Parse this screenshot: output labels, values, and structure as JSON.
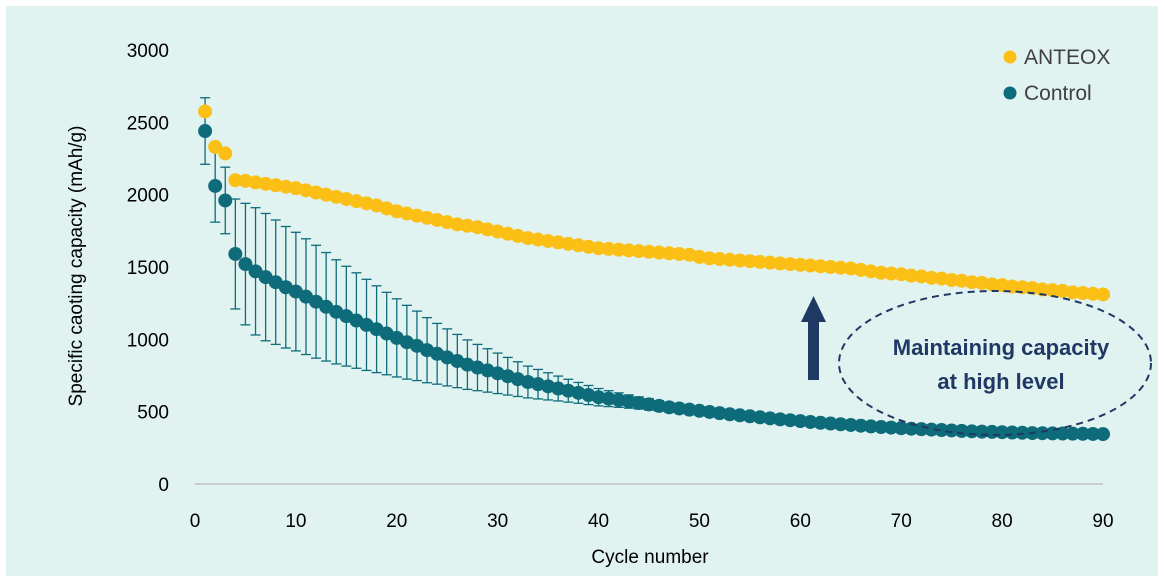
{
  "colors": {
    "background": "#e1f3f1",
    "anteox": "#fbbf16",
    "control": "#0e6b7a",
    "annotation": "#1f3864",
    "axis": "#bfbfbf",
    "text": "#000000"
  },
  "annotation": {
    "line1": "Maintaining capacity",
    "line2": "at high level"
  },
  "chart_data": {
    "type": "scatter",
    "xlabel": "Cycle number",
    "ylabel": "Specific caoting capacity (mAh/g)",
    "xlim": [
      0,
      90
    ],
    "ylim": [
      0,
      3000
    ],
    "x_ticks": [
      0,
      10,
      20,
      30,
      40,
      50,
      60,
      70,
      80,
      90
    ],
    "y_ticks": [
      0,
      500,
      1000,
      1500,
      2000,
      2500,
      3000
    ],
    "grid": false,
    "legend_position": "top-right",
    "series": [
      {
        "name": "ANTEOX",
        "x": [
          1,
          2,
          3,
          4,
          5,
          6,
          7,
          8,
          9,
          10,
          11,
          12,
          13,
          14,
          15,
          16,
          17,
          18,
          19,
          20,
          21,
          22,
          23,
          24,
          25,
          26,
          27,
          28,
          29,
          30,
          31,
          32,
          33,
          34,
          35,
          36,
          37,
          38,
          39,
          40,
          41,
          42,
          43,
          44,
          45,
          46,
          47,
          48,
          49,
          50,
          51,
          52,
          53,
          54,
          55,
          56,
          57,
          58,
          59,
          60,
          61,
          62,
          63,
          64,
          65,
          66,
          67,
          68,
          69,
          70,
          71,
          72,
          73,
          74,
          75,
          76,
          77,
          78,
          79,
          80,
          81,
          82,
          83,
          84,
          85,
          86,
          87,
          88,
          89,
          90
        ],
        "y": [
          2575,
          2330,
          2285,
          2100,
          2095,
          2085,
          2075,
          2065,
          2055,
          2045,
          2030,
          2015,
          2000,
          1985,
          1970,
          1955,
          1940,
          1925,
          1905,
          1885,
          1870,
          1855,
          1840,
          1825,
          1810,
          1795,
          1785,
          1775,
          1760,
          1745,
          1730,
          1715,
          1700,
          1690,
          1680,
          1670,
          1660,
          1650,
          1640,
          1630,
          1625,
          1620,
          1615,
          1610,
          1605,
          1600,
          1595,
          1590,
          1585,
          1570,
          1560,
          1555,
          1550,
          1545,
          1540,
          1535,
          1530,
          1525,
          1520,
          1515,
          1510,
          1505,
          1500,
          1495,
          1490,
          1480,
          1470,
          1460,
          1455,
          1450,
          1440,
          1435,
          1425,
          1420,
          1410,
          1405,
          1395,
          1390,
          1380,
          1375,
          1365,
          1360,
          1355,
          1345,
          1340,
          1335,
          1325,
          1320,
          1315,
          1310
        ]
      },
      {
        "name": "Control",
        "x": [
          1,
          2,
          3,
          4,
          5,
          6,
          7,
          8,
          9,
          10,
          11,
          12,
          13,
          14,
          15,
          16,
          17,
          18,
          19,
          20,
          21,
          22,
          23,
          24,
          25,
          26,
          27,
          28,
          29,
          30,
          31,
          32,
          33,
          34,
          35,
          36,
          37,
          38,
          39,
          40,
          41,
          42,
          43,
          44,
          45,
          46,
          47,
          48,
          49,
          50,
          51,
          52,
          53,
          54,
          55,
          56,
          57,
          58,
          59,
          60,
          61,
          62,
          63,
          64,
          65,
          66,
          67,
          68,
          69,
          70,
          71,
          72,
          73,
          74,
          75,
          76,
          77,
          78,
          79,
          80,
          81,
          82,
          83,
          84,
          85,
          86,
          87,
          88,
          89,
          90
        ],
        "y": [
          2440,
          2060,
          1960,
          1590,
          1520,
          1470,
          1430,
          1395,
          1360,
          1330,
          1295,
          1260,
          1225,
          1190,
          1160,
          1130,
          1100,
          1070,
          1040,
          1010,
          980,
          955,
          925,
          900,
          875,
          850,
          825,
          805,
          785,
          765,
          745,
          725,
          705,
          690,
          675,
          660,
          645,
          630,
          615,
          600,
          590,
          580,
          570,
          560,
          550,
          540,
          530,
          522,
          514,
          506,
          498,
          490,
          482,
          475,
          468,
          461,
          454,
          447,
          441,
          435,
          429,
          423,
          418,
          413,
          408,
          403,
          398,
          394,
          390,
          386,
          382,
          379,
          376,
          373,
          370,
          367,
          364,
          362,
          360,
          358,
          356,
          354,
          352,
          351,
          350,
          349,
          348,
          347,
          346,
          345
        ],
        "error": [
          230,
          250,
          230,
          380,
          420,
          440,
          440,
          430,
          420,
          410,
          400,
          390,
          375,
          360,
          345,
          330,
          315,
          300,
          285,
          270,
          255,
          240,
          225,
          210,
          197,
          184,
          171,
          160,
          150,
          140,
          130,
          120,
          110,
          102,
          94,
          86,
          79,
          72,
          66,
          60,
          55,
          50,
          46,
          42,
          39,
          36,
          33,
          31,
          29,
          27,
          25,
          23,
          22,
          21,
          20,
          19,
          18,
          17,
          16,
          15,
          15,
          14,
          14,
          13,
          13,
          12,
          12,
          12,
          11,
          11,
          11,
          10,
          10,
          10,
          10,
          9,
          9,
          9,
          9,
          9,
          8,
          8,
          8,
          8,
          8,
          8,
          8,
          8,
          8,
          8
        ]
      }
    ]
  }
}
